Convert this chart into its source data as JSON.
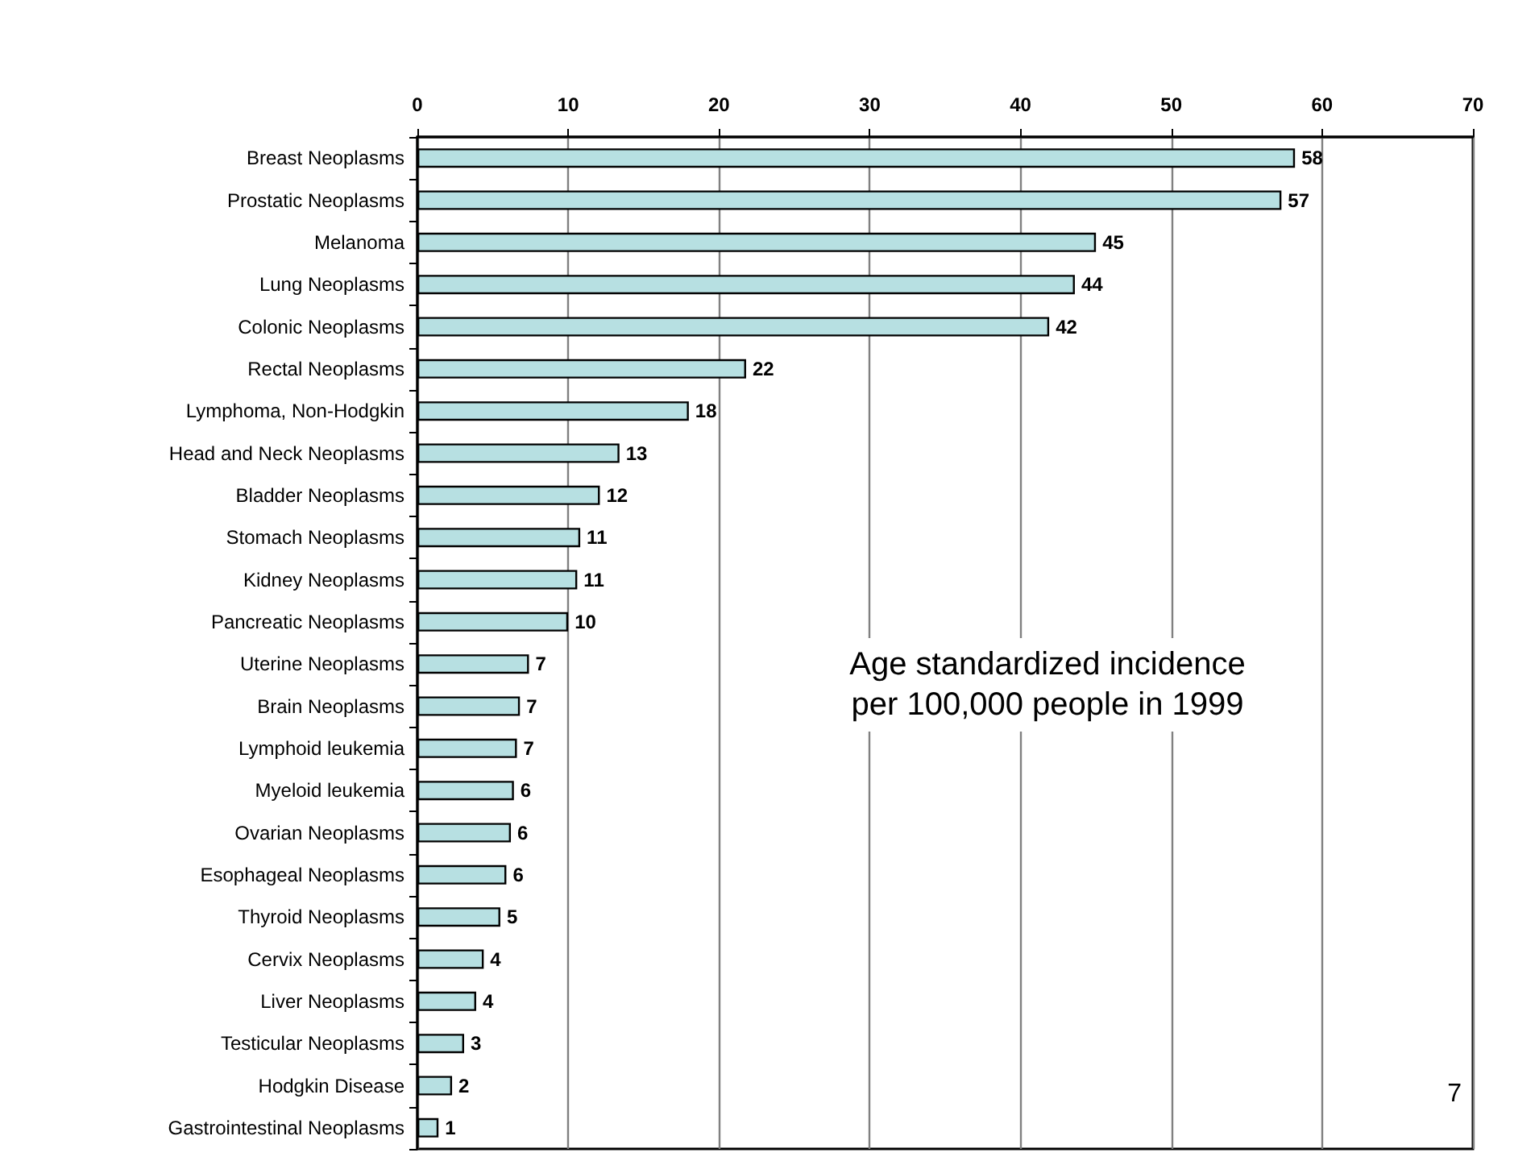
{
  "chart_data": {
    "type": "bar",
    "orientation": "horizontal",
    "categories": [
      "Breast Neoplasms",
      "Prostatic Neoplasms",
      "Melanoma",
      "Lung Neoplasms",
      "Colonic Neoplasms",
      "Rectal Neoplasms",
      "Lymphoma, Non-Hodgkin",
      "Head and Neck Neoplasms",
      "Bladder Neoplasms",
      "Stomach Neoplasms",
      "Kidney Neoplasms",
      "Pancreatic Neoplasms",
      "Uterine Neoplasms",
      "Brain Neoplasms",
      "Lymphoid leukemia",
      "Myeloid leukemia",
      "Ovarian Neoplasms",
      "Esophageal Neoplasms",
      "Thyroid Neoplasms",
      "Cervix Neoplasms",
      "Liver Neoplasms",
      "Testicular Neoplasms",
      "Hodgkin Disease",
      "Gastrointestinal Neoplasms"
    ],
    "values": [
      58.2,
      57.3,
      45.0,
      43.6,
      41.9,
      21.8,
      18.0,
      13.4,
      12.1,
      10.8,
      10.6,
      10.0,
      7.4,
      6.8,
      6.6,
      6.4,
      6.2,
      5.9,
      5.5,
      4.4,
      3.9,
      3.1,
      2.3,
      1.4
    ],
    "value_labels": [
      "58",
      "57",
      "45",
      "44",
      "42",
      "22",
      "18",
      "13",
      "12",
      "11",
      "11",
      "10",
      "7",
      "7",
      "7",
      "6",
      "6",
      "6",
      "5",
      "4",
      "4",
      "3",
      "2",
      "1"
    ],
    "color": "#b7e0e2",
    "xlim": [
      0,
      70
    ],
    "xticks": [
      0,
      10,
      20,
      30,
      40,
      50,
      60,
      70
    ],
    "grid": "x",
    "annotations": [
      "Age standardized incidence\nper 100,000 people in 1999",
      "7"
    ]
  }
}
